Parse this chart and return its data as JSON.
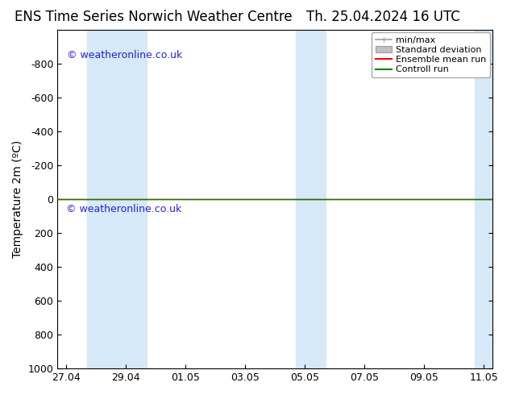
{
  "title_left": "ENS Time Series Norwich Weather Centre",
  "title_right": "Th. 25.04.2024 16 UTC",
  "ylabel": "Temperature 2m (ºC)",
  "watermark": "© weatheronline.co.uk",
  "ylim_bottom": 1000,
  "ylim_top": -1000,
  "yticks": [
    -800,
    -600,
    -400,
    -200,
    0,
    200,
    400,
    600,
    800,
    1000
  ],
  "x_labels": [
    "27.04",
    "29.04",
    "01.05",
    "03.05",
    "05.05",
    "07.05",
    "09.05",
    "11.05"
  ],
  "x_positions": [
    0,
    2,
    4,
    6,
    8,
    10,
    12,
    14
  ],
  "x_min": -0.3,
  "x_max": 14.3,
  "shaded_bands": [
    {
      "x_start": 0.7,
      "x_end": 2.7
    },
    {
      "x_start": 7.7,
      "x_end": 8.7
    },
    {
      "x_start": 13.7,
      "x_end": 14.3
    }
  ],
  "band_color": "#d6e9f8",
  "ensemble_mean_color": "#ff0000",
  "control_run_color": "#008000",
  "min_max_color": "#a0a0a0",
  "std_dev_color": "#c0c0c0",
  "background_color": "#ffffff",
  "legend_entries": [
    "min/max",
    "Standard deviation",
    "Ensemble mean run",
    "Controll run"
  ],
  "title_fontsize": 12,
  "tick_fontsize": 9,
  "ylabel_fontsize": 10,
  "legend_fontsize": 8
}
